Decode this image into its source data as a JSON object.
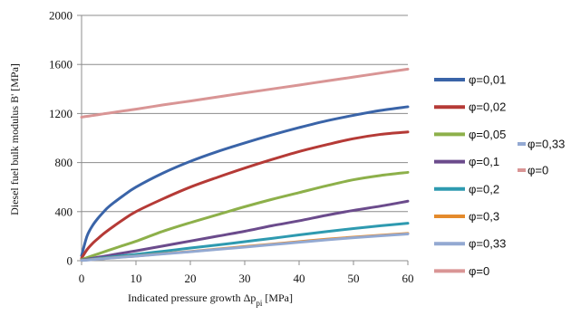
{
  "chart_data": {
    "type": "line",
    "xlabel": "Indicated pressure growth Δp",
    "xlabel_sub": "pi",
    "xlabel_unit": "[MPa]",
    "ylabel": "Diesel fuel bulk modulus B' [MPa]",
    "xlim": [
      0,
      60
    ],
    "ylim": [
      0,
      2000
    ],
    "xticks": [
      "0",
      "10",
      "20",
      "30",
      "40",
      "50",
      "60"
    ],
    "yticks": [
      "0",
      "400",
      "800",
      "1200",
      "1600",
      "2000"
    ],
    "grid": "horizontal",
    "legend_placement": "right",
    "x": [
      0,
      1,
      2,
      3,
      4,
      5,
      7.5,
      10,
      15,
      20,
      25,
      30,
      35,
      40,
      45,
      50,
      55,
      60
    ],
    "series": [
      {
        "name": "φ=0,01",
        "color": "#3a64a8",
        "values": [
          40,
          200,
          285,
          345,
          395,
          440,
          525,
          600,
          715,
          810,
          890,
          960,
          1025,
          1085,
          1140,
          1185,
          1225,
          1255
        ]
      },
      {
        "name": "φ=0,02",
        "color": "#b53a36",
        "values": [
          20,
          90,
          140,
          180,
          218,
          252,
          330,
          400,
          505,
          600,
          680,
          755,
          825,
          890,
          945,
          995,
          1030,
          1050
        ]
      },
      {
        "name": "φ=0,05",
        "color": "#8db04a",
        "values": [
          10,
          25,
          40,
          55,
          70,
          85,
          122,
          158,
          240,
          310,
          375,
          440,
          500,
          555,
          610,
          660,
          695,
          720
        ]
      },
      {
        "name": "φ=0,1",
        "color": "#6b4b8c",
        "values": [
          5,
          12,
          20,
          28,
          35,
          43,
          62,
          80,
          120,
          160,
          200,
          240,
          285,
          325,
          370,
          410,
          445,
          485
        ]
      },
      {
        "name": "φ=0,2",
        "color": "#2e9ab0",
        "values": [
          3,
          8,
          13,
          18,
          23,
          28,
          40,
          52,
          77,
          103,
          128,
          155,
          182,
          210,
          237,
          262,
          285,
          305
        ]
      },
      {
        "name": "φ=0,3",
        "color": "#e48a2c",
        "values": [
          2,
          6,
          10,
          14,
          17,
          21,
          30,
          38,
          57,
          75,
          95,
          115,
          135,
          155,
          175,
          192,
          208,
          222
        ]
      },
      {
        "name": "φ=0,33",
        "color": "#93a9d2",
        "values": [
          2,
          5,
          9,
          13,
          16,
          20,
          29,
          37,
          55,
          73,
          92,
          111,
          131,
          150,
          170,
          187,
          203,
          218
        ]
      },
      {
        "name": "φ=0",
        "color": "#d99595",
        "values": [
          1170,
          1177,
          1183,
          1190,
          1197,
          1203,
          1220,
          1235,
          1270,
          1302,
          1335,
          1368,
          1400,
          1432,
          1465,
          1497,
          1530,
          1562
        ]
      }
    ],
    "secondary_legend": [
      {
        "name": "φ=0,33",
        "color": "#93a9d2"
      },
      {
        "name": "φ=0",
        "color": "#d99595"
      }
    ]
  }
}
